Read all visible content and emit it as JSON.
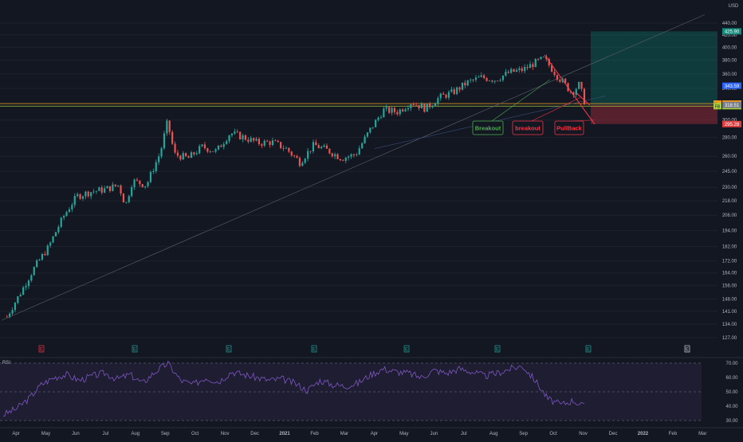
{
  "chart_data": [
    {
      "type": "candlestick",
      "currency": "USD",
      "ylim": [
        124,
        460
      ],
      "y_scale": "log",
      "y_ticks": [
        127,
        134,
        141,
        148,
        156,
        164,
        172,
        182,
        194,
        206,
        218,
        230,
        245,
        260,
        280,
        300,
        320,
        340,
        360,
        380,
        400,
        420,
        440
      ],
      "y_tick_labels": [
        "127.00",
        "134.00",
        "141.00",
        "148.00",
        "156.00",
        "164.00",
        "172.00",
        "182.00",
        "194.00",
        "206.00",
        "218.00",
        "230.00",
        "245.00",
        "260.00",
        "280.00",
        "300.00",
        "320.00",
        "340.00",
        "360.00",
        "380.00",
        "400.00",
        "420.00",
        "440.00"
      ],
      "x_tick_labels": [
        "Apr",
        "May",
        "Jun",
        "Jul",
        "Aug",
        "Sep",
        "Oct",
        "Nov",
        "Dec",
        "2021",
        "Feb",
        "Mar",
        "Apr",
        "May",
        "Jun",
        "Jul",
        "Aug",
        "Sep",
        "Oct",
        "Nov",
        "Dec",
        "2022",
        "Feb",
        "Mar"
      ],
      "close_path": [
        {
          "date": "2020-03-23",
          "close": 138
        },
        {
          "date": "2020-04-06",
          "close": 152
        },
        {
          "date": "2020-04-20",
          "close": 168
        },
        {
          "date": "2020-05-04",
          "close": 182
        },
        {
          "date": "2020-05-18",
          "close": 204
        },
        {
          "date": "2020-06-01",
          "close": 222
        },
        {
          "date": "2020-06-15",
          "close": 226
        },
        {
          "date": "2020-06-29",
          "close": 228
        },
        {
          "date": "2020-07-13",
          "close": 232
        },
        {
          "date": "2020-07-20",
          "close": 214
        },
        {
          "date": "2020-07-27",
          "close": 236
        },
        {
          "date": "2020-08-10",
          "close": 232
        },
        {
          "date": "2020-08-24",
          "close": 264
        },
        {
          "date": "2020-08-31",
          "close": 298
        },
        {
          "date": "2020-09-07",
          "close": 262
        },
        {
          "date": "2020-09-21",
          "close": 258
        },
        {
          "date": "2020-10-05",
          "close": 270
        },
        {
          "date": "2020-10-19",
          "close": 265
        },
        {
          "date": "2020-11-02",
          "close": 285
        },
        {
          "date": "2020-11-16",
          "close": 280
        },
        {
          "date": "2020-11-30",
          "close": 274
        },
        {
          "date": "2020-12-14",
          "close": 275
        },
        {
          "date": "2020-12-28",
          "close": 268
        },
        {
          "date": "2021-01-11",
          "close": 254
        },
        {
          "date": "2021-01-25",
          "close": 272
        },
        {
          "date": "2021-02-08",
          "close": 266
        },
        {
          "date": "2021-02-22",
          "close": 258
        },
        {
          "date": "2021-03-08",
          "close": 262
        },
        {
          "date": "2021-03-22",
          "close": 288
        },
        {
          "date": "2021-04-05",
          "close": 312
        },
        {
          "date": "2021-04-19",
          "close": 310
        },
        {
          "date": "2021-05-03",
          "close": 322
        },
        {
          "date": "2021-05-17",
          "close": 314
        },
        {
          "date": "2021-05-31",
          "close": 328
        },
        {
          "date": "2021-06-14",
          "close": 335
        },
        {
          "date": "2021-06-28",
          "close": 348
        },
        {
          "date": "2021-07-12",
          "close": 355
        },
        {
          "date": "2021-07-26",
          "close": 352
        },
        {
          "date": "2021-08-09",
          "close": 362
        },
        {
          "date": "2021-08-23",
          "close": 366
        },
        {
          "date": "2021-09-06",
          "close": 378
        },
        {
          "date": "2021-09-13",
          "close": 382
        },
        {
          "date": "2021-09-27",
          "close": 356
        },
        {
          "date": "2021-10-11",
          "close": 334
        },
        {
          "date": "2021-10-18",
          "close": 345
        },
        {
          "date": "2021-10-25",
          "close": 316.92
        }
      ],
      "horizontal_lines": [
        {
          "name": "Key",
          "value": 320.18,
          "color": "#f59d1a"
        },
        {
          "name": "FB",
          "value": 316.92,
          "color": "#a4c93a"
        }
      ],
      "position": {
        "entry": 318.51,
        "target": 425.9,
        "stop": 295.28
      },
      "price_labels": [
        {
          "value": 425.9,
          "text": "425.90",
          "color": "#13897a"
        },
        {
          "value": 343.59,
          "text": "343.59",
          "color": "#2962ff"
        },
        {
          "value": 320.18,
          "text": "320.18",
          "prefix": "Key",
          "color": "#f59d1a"
        },
        {
          "value": 316.92,
          "text": "316.92",
          "prefix": "FB",
          "color": "#a4d13a"
        },
        {
          "value": 318.51,
          "text": "318.51",
          "color": "#787b86"
        },
        {
          "value": 295.28,
          "text": "295.28",
          "color": "#e03c3c"
        }
      ],
      "annotations": [
        {
          "text": "Breakout",
          "color": "#4caf50"
        },
        {
          "text": "breakout",
          "color": "#f23645"
        },
        {
          "text": "PullBack",
          "color": "#f23645"
        }
      ],
      "event_markers": [
        "E",
        "E",
        "E",
        "E",
        "E",
        "E",
        "E",
        "E"
      ]
    },
    {
      "type": "line",
      "label": "RSI",
      "ylim": [
        27,
        74
      ],
      "y_ticks": [
        30,
        40,
        50,
        60,
        70
      ],
      "y_tick_labels": [
        "30.00",
        "40.00",
        "50.00",
        "60.00",
        "70.00"
      ],
      "band": [
        30,
        70
      ],
      "mid": 50,
      "values": [
        34,
        38,
        45,
        55,
        60,
        62,
        58,
        61,
        63,
        59,
        62,
        56,
        64,
        70,
        58,
        55,
        60,
        57,
        64,
        62,
        60,
        58,
        59,
        56,
        51,
        58,
        55,
        54,
        56,
        62,
        66,
        64,
        63,
        60,
        65,
        63,
        66,
        64,
        61,
        63,
        66,
        68,
        58,
        45,
        41,
        44,
        39
      ]
    }
  ]
}
